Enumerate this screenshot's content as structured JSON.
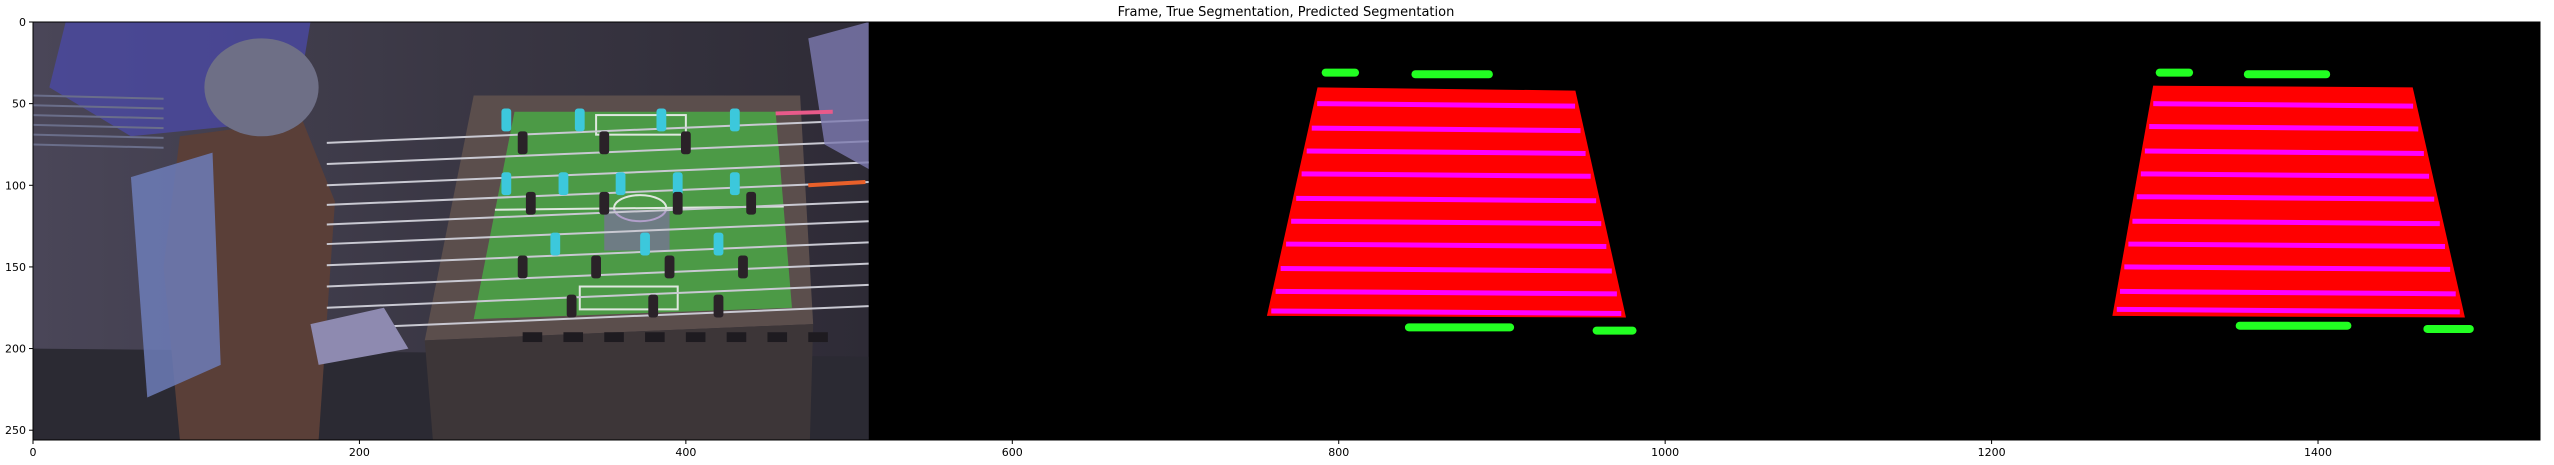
{
  "chart_data": {
    "type": "image",
    "title": "Frame, True Segmentation, Predicted Segmentation",
    "xlim": [
      0,
      1536
    ],
    "ylim": [
      256,
      0
    ],
    "x_ticks": [
      0,
      200,
      400,
      600,
      800,
      1000,
      1200,
      1400
    ],
    "y_ticks": [
      0,
      50,
      100,
      150,
      200,
      250
    ],
    "panels": [
      {
        "name": "frame",
        "x_range": [
          0,
          512
        ],
        "content": "foosball table photo",
        "table_outline": [
          [
            270,
            45
          ],
          [
            470,
            45
          ],
          [
            478,
            185
          ],
          [
            240,
            195
          ]
        ],
        "field_outline": [
          [
            295,
            55
          ],
          [
            455,
            55
          ],
          [
            465,
            175
          ],
          [
            270,
            182
          ]
        ],
        "rods_y": [
          62,
          75,
          88,
          100,
          112,
          124,
          137,
          150,
          163,
          176
        ]
      },
      {
        "name": "true-segmentation",
        "x_range": [
          512,
          1024
        ],
        "field_polygon": [
          [
            787,
            40
          ],
          [
            945,
            42
          ],
          [
            976,
            181
          ],
          [
            756,
            180
          ]
        ],
        "field_color": "#ff0000",
        "stripe_color": "#ff00ff",
        "stripes_y": [
          50,
          65,
          79,
          93,
          108,
          122,
          136,
          151,
          165,
          177
        ],
        "goal_marks": [
          {
            "x": [
              792,
              810
            ],
            "y": 31
          },
          {
            "x": [
              847,
              892
            ],
            "y": 32
          },
          {
            "x": [
              843,
              905
            ],
            "y": 187
          },
          {
            "x": [
              958,
              980
            ],
            "y": 189
          }
        ]
      },
      {
        "name": "predicted-segmentation",
        "x_range": [
          1024,
          1536
        ],
        "field_polygon": [
          [
            1299,
            39
          ],
          [
            1458,
            40
          ],
          [
            1490,
            181
          ],
          [
            1274,
            180
          ]
        ],
        "field_color": "#ff0000",
        "stripe_color": "#ff00ff",
        "stripes_y": [
          50,
          64,
          79,
          93,
          107,
          122,
          136,
          150,
          165,
          176
        ],
        "goal_marks": [
          {
            "x": [
              1303,
              1321
            ],
            "y": 31
          },
          {
            "x": [
              1357,
              1405
            ],
            "y": 32
          },
          {
            "x": [
              1352,
              1418
            ],
            "y": 186
          },
          {
            "x": [
              1467,
              1493
            ],
            "y": 188
          }
        ]
      }
    ],
    "colors": {
      "background_black": "#000000",
      "field_red": "#ff0000",
      "stripe_magenta": "#ff00ff",
      "goal_green": "#22ff22",
      "photo_green": "#4c9a46",
      "photo_dark": "#3a3542",
      "player_cyan": "#3cc8dc"
    }
  }
}
